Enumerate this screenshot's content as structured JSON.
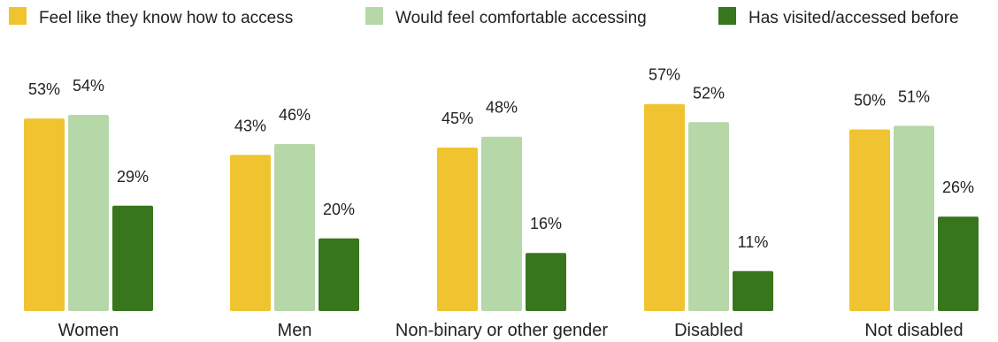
{
  "chart_data": {
    "type": "bar",
    "categories": [
      "Women",
      "Men",
      "Non-binary or other gender",
      "Disabled",
      "Not disabled"
    ],
    "series": [
      {
        "name": "Feel like they know how to access",
        "color": "#f0c330",
        "values": [
          53,
          43,
          45,
          57,
          50
        ],
        "labels": [
          "53%",
          "43%",
          "45%",
          "57%",
          "50%"
        ]
      },
      {
        "name": "Would feel comfortable accessing",
        "color": "#b6d7a8",
        "values": [
          54,
          46,
          48,
          52,
          51
        ],
        "labels": [
          "54%",
          "46%",
          "48%",
          "52%",
          "51%"
        ]
      },
      {
        "name": "Has visited/accessed before",
        "color": "#38761d",
        "values": [
          29,
          20,
          16,
          11,
          26
        ],
        "labels": [
          "29%",
          "20%",
          "16%",
          "11%",
          "26%"
        ]
      }
    ],
    "value_unit": "%",
    "ylim": [
      0,
      60
    ],
    "legend_position": "top",
    "grid": false,
    "axes_visible": false
  }
}
